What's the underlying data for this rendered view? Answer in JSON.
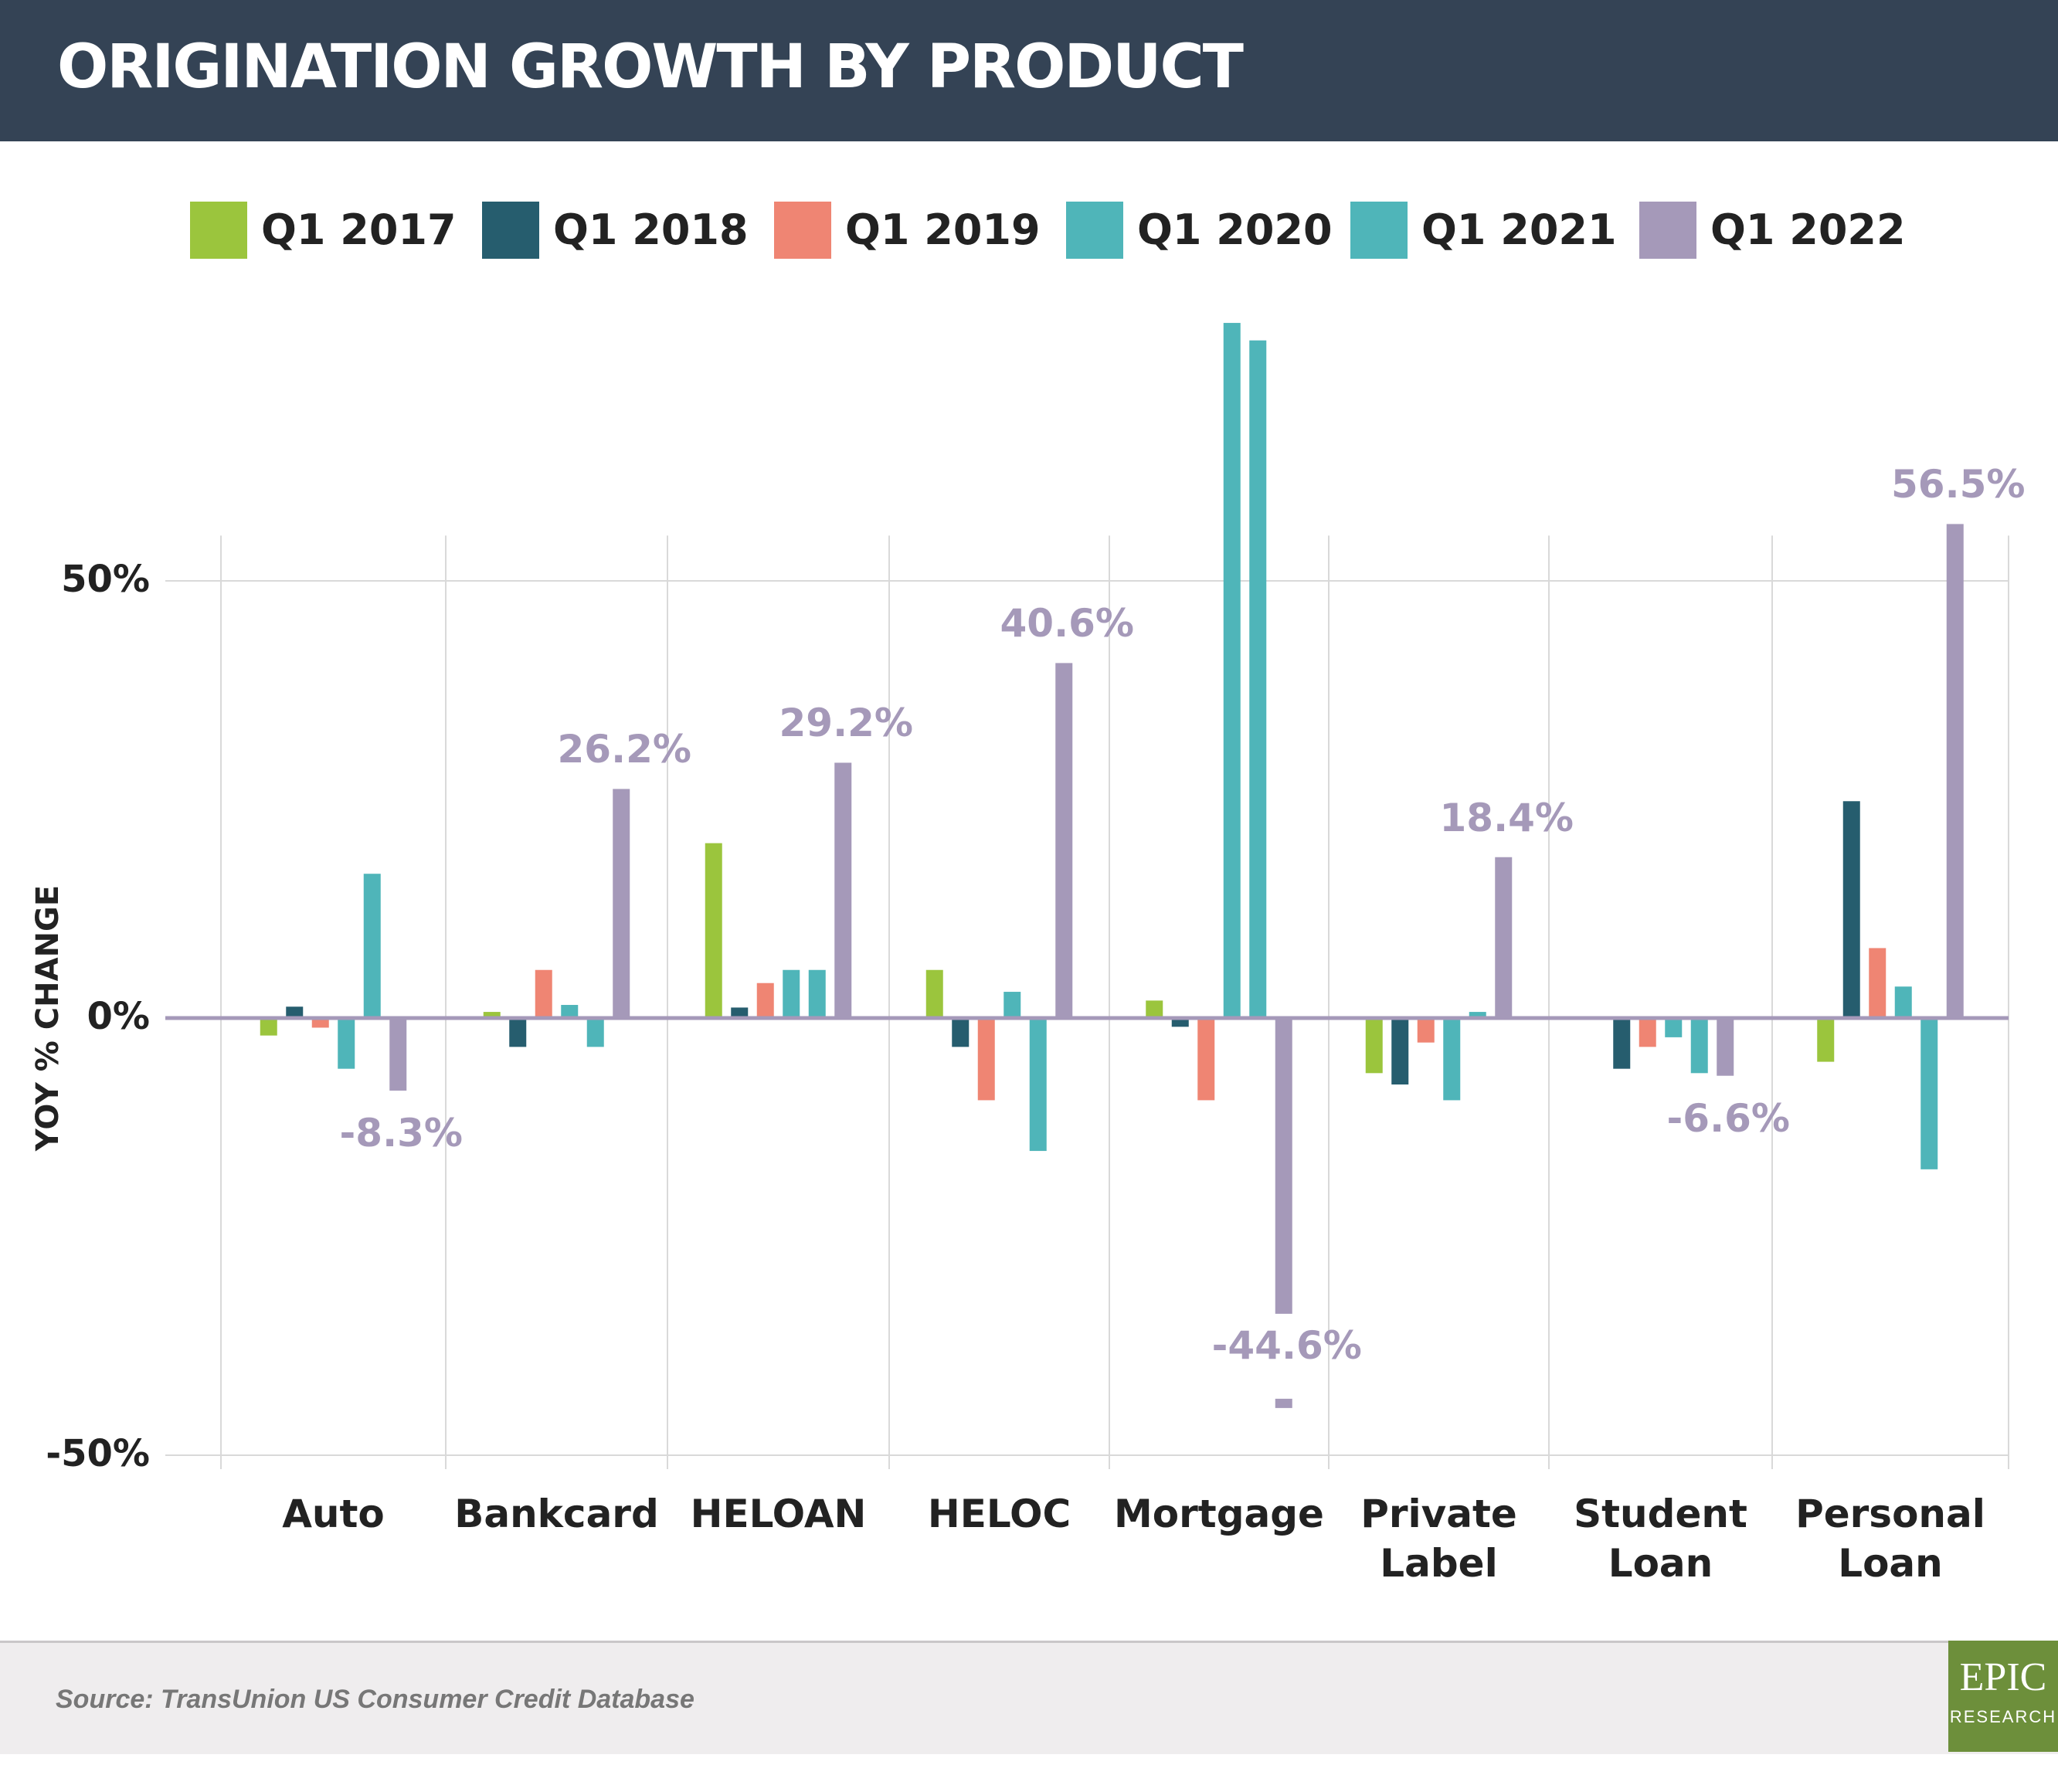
{
  "header": {
    "title": "ORIGINATION GROWTH BY PRODUCT"
  },
  "colors": {
    "header_bg": "#344355",
    "q1_2017": "#9bc53d",
    "q1_2018": "#265d6e",
    "q1_2019": "#ef8573",
    "q1_2020": "#4fb5b9",
    "q1_2021": "#4fb5b9",
    "q1_2022": "#a599b9",
    "logo_bg": "#6d8f3b"
  },
  "chart_data": {
    "type": "bar",
    "title": "ORIGINATION GROWTH BY PRODUCT",
    "ylabel": "YOY % CHANGE",
    "xlabel": "",
    "ylim": [
      -50,
      55
    ],
    "yticks": [
      "50%",
      "0%",
      "-50%"
    ],
    "ytick_values": [
      50,
      0,
      -50
    ],
    "grid": true,
    "legend_position": "top",
    "categories": [
      "Auto",
      "Bankcard",
      "HELOAN",
      "HELOC",
      "Mortgage",
      "Private\nLabel",
      "Student\nLoan",
      "Personal\nLoan"
    ],
    "series": [
      {
        "name": "Q1 2017",
        "color": "#9bc53d",
        "values": [
          -2,
          0.7,
          20,
          5.5,
          2,
          -6.3,
          0,
          -5
        ]
      },
      {
        "name": "Q1 2018",
        "color": "#265d6e",
        "values": [
          1.3,
          -3.3,
          1.2,
          -3.3,
          -1,
          -7.6,
          -5.8,
          24.8
        ]
      },
      {
        "name": "Q1 2019",
        "color": "#ef8573",
        "values": [
          -1.1,
          5.5,
          4,
          -9.4,
          -9.4,
          -2.8,
          -3.3,
          8
        ]
      },
      {
        "name": "Q1 2020",
        "color": "#4fb5b9",
        "values": [
          -5.8,
          1.5,
          5.5,
          3,
          79.5,
          -9.4,
          -2.2,
          3.6
        ]
      },
      {
        "name": "Q1 2021",
        "color": "#4fb5b9",
        "values": [
          16.5,
          -3.3,
          5.5,
          -15.2,
          77.5,
          0.7,
          -6.3,
          -17.3
        ]
      },
      {
        "name": "Q1 2022",
        "color": "#a599b9",
        "values": [
          -8.3,
          26.2,
          29.2,
          40.6,
          -44.6,
          18.4,
          -6.6,
          56.5
        ]
      }
    ],
    "data_labels": [
      "-8.3%",
      "26.2%",
      "29.2%",
      "40.6%",
      "-44.6%",
      "18.4%",
      "-6.6%",
      "56.5%"
    ]
  },
  "footer": {
    "source": "Source: TransUnion US Consumer Credit Database",
    "logo_main": "EPIC",
    "logo_sub": "RESEARCH"
  }
}
